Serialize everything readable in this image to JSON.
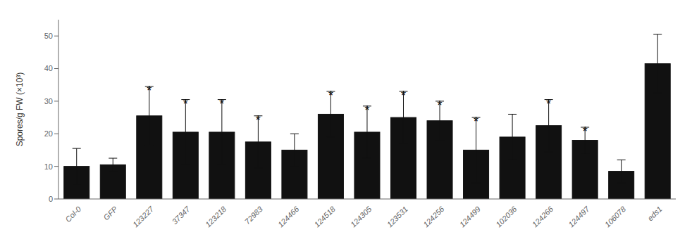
{
  "chart_data": {
    "type": "bar",
    "categories": [
      "Col-0",
      "GFP",
      "123227",
      "37347",
      "123218",
      "72983",
      "124466",
      "124518",
      "124305",
      "123531",
      "124256",
      "124499",
      "102036",
      "124266",
      "124497",
      "106078",
      "eds1"
    ],
    "values": [
      10,
      10.5,
      25.5,
      20.5,
      20.5,
      17.5,
      15,
      26,
      20.5,
      25,
      24,
      15,
      19,
      22.5,
      18,
      8.5,
      41.5
    ],
    "errors": [
      5.5,
      2,
      9,
      10,
      10,
      8,
      5,
      7,
      8,
      8,
      6,
      10,
      7,
      8,
      4,
      3.5,
      9
    ],
    "annotations": [
      null,
      null,
      "*",
      "*",
      "*",
      "*",
      null,
      "*",
      "*",
      "*",
      "*",
      "*",
      null,
      "*",
      "*",
      null,
      null
    ],
    "color": "#111111",
    "ylabel": "Spores/g FW (×10³)",
    "ylim": [
      0,
      55
    ],
    "yticks": [
      0,
      10,
      20,
      30,
      40,
      50
    ],
    "grid": false
  }
}
